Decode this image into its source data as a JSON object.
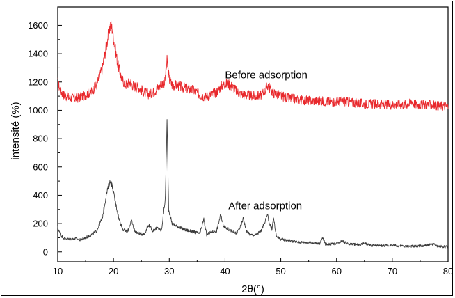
{
  "chart_data": {
    "type": "line",
    "title": "",
    "xlabel": "2θ(°)",
    "ylabel": "intensité (%)",
    "xlim": [
      10,
      80
    ],
    "ylim": [
      -70,
      1730
    ],
    "x_ticks": [
      10,
      20,
      30,
      40,
      50,
      60,
      70,
      80
    ],
    "y_ticks": [
      0,
      200,
      400,
      600,
      800,
      1000,
      1200,
      1400,
      1600
    ],
    "grid": false,
    "legend": "none",
    "annotations": [
      {
        "text": "Before adsorption",
        "series": "before"
      },
      {
        "text": "After adsorption",
        "series": "after"
      }
    ],
    "series": [
      {
        "id": "before",
        "color": "#e8282c",
        "x": [
          10,
          10.5,
          11,
          12,
          13,
          14,
          15,
          16,
          17,
          18,
          18.7,
          19.2,
          19.5,
          19.8,
          20.2,
          20.8,
          21.5,
          22.2,
          23,
          23.5,
          24.5,
          25.5,
          26.5,
          27.5,
          28.5,
          29.2,
          29.6,
          30,
          30.5,
          31.5,
          32.5,
          33.5,
          34.5,
          35.5,
          36.5,
          37.5,
          38.5,
          39.5,
          40.5,
          41.5,
          42.5,
          43.5,
          44.5,
          45.5,
          46.5,
          47.2,
          47.7,
          48.3,
          48.8,
          49.5,
          51,
          53,
          55,
          57,
          59,
          61,
          63,
          65,
          67,
          69,
          71,
          73,
          73.5,
          73.8,
          74.5,
          76,
          78,
          80
        ],
        "y": [
          1200,
          1140,
          1110,
          1090,
          1085,
          1090,
          1110,
          1130,
          1180,
          1300,
          1450,
          1560,
          1610,
          1570,
          1460,
          1320,
          1220,
          1180,
          1200,
          1175,
          1160,
          1130,
          1110,
          1140,
          1180,
          1200,
          1350,
          1220,
          1180,
          1175,
          1160,
          1150,
          1140,
          1110,
          1095,
          1110,
          1130,
          1180,
          1190,
          1160,
          1120,
          1110,
          1105,
          1100,
          1110,
          1140,
          1180,
          1140,
          1120,
          1110,
          1090,
          1075,
          1070,
          1065,
          1060,
          1065,
          1055,
          1045,
          1045,
          1040,
          1040,
          1045,
          1070,
          1050,
          1040,
          1040,
          1035,
          1030
        ]
      },
      {
        "id": "after",
        "color": "#3b3b3b",
        "x": [
          10,
          10.5,
          11,
          12,
          13,
          14,
          15,
          16,
          17,
          18,
          18.7,
          19.2,
          19.5,
          19.8,
          20.3,
          21,
          21.7,
          22.5,
          23.2,
          23.8,
          24.5,
          25.5,
          26.3,
          27,
          27.8,
          28.6,
          29.3,
          29.6,
          29.9,
          30.5,
          31.5,
          32.5,
          33.5,
          34.5,
          35.5,
          36.2,
          36.7,
          37.5,
          38.5,
          39.2,
          39.7,
          40.2,
          41,
          42,
          42.8,
          43.3,
          43.8,
          44.5,
          45.5,
          46.5,
          47.2,
          47.6,
          48,
          48.4,
          48.7,
          49.2,
          50,
          51.5,
          53,
          55,
          57,
          57.5,
          58,
          59,
          60,
          61,
          62,
          63,
          64,
          65,
          66,
          68,
          70,
          72,
          74,
          76,
          77.5,
          78,
          80
        ],
        "y": [
          170,
          120,
          100,
          90,
          95,
          85,
          100,
          120,
          150,
          240,
          400,
          480,
          500,
          460,
          360,
          230,
          160,
          140,
          220,
          150,
          130,
          125,
          190,
          150,
          170,
          150,
          380,
          920,
          300,
          200,
          180,
          160,
          150,
          140,
          130,
          230,
          120,
          140,
          150,
          260,
          190,
          170,
          150,
          130,
          180,
          240,
          150,
          120,
          120,
          150,
          220,
          260,
          200,
          160,
          240,
          110,
          90,
          80,
          70,
          65,
          60,
          100,
          55,
          55,
          60,
          80,
          55,
          55,
          50,
          60,
          45,
          45,
          45,
          40,
          40,
          45,
          55,
          40,
          35
        ]
      }
    ]
  }
}
